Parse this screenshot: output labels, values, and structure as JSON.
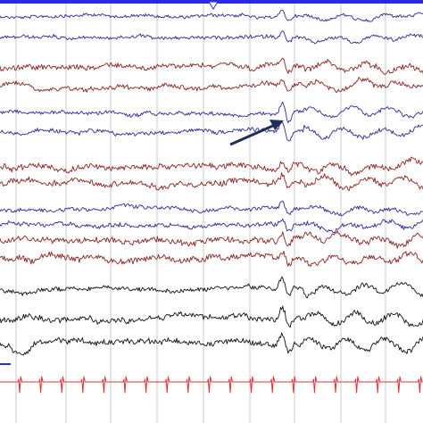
{
  "viewer": {
    "background": "#ffffff",
    "top_bar_color": "#2a2ae6",
    "gridline_color": "#c8c8c8"
  },
  "colors": {
    "blue": "#2b2b9c",
    "red": "#8b2323",
    "black": "#111111",
    "ecg": "#e0303a",
    "arrow": "#1f2f5a"
  },
  "channels": [
    {
      "id": "ch1",
      "color": "blue",
      "amp": 2.0,
      "event": 0.9
    },
    {
      "id": "ch2",
      "color": "blue",
      "amp": 2.2,
      "event": 0.9
    },
    {
      "id": "ch3",
      "color": "red",
      "amp": 3.2,
      "event": 1.0
    },
    {
      "id": "ch4",
      "color": "red",
      "amp": 3.0,
      "event": 1.0
    },
    {
      "id": "ch5",
      "color": "blue",
      "amp": 2.2,
      "event": 1.6
    },
    {
      "id": "ch6",
      "color": "blue",
      "amp": 2.6,
      "event": 1.6
    },
    {
      "id": "ch7",
      "color": "red",
      "amp": 3.5,
      "event": 1.2
    },
    {
      "id": "ch8",
      "color": "red",
      "amp": 3.5,
      "event": 1.2
    },
    {
      "id": "ch9",
      "color": "blue",
      "amp": 2.5,
      "event": 1.0
    },
    {
      "id": "ch10",
      "color": "blue",
      "amp": 2.8,
      "event": 1.0
    },
    {
      "id": "ch11",
      "color": "red",
      "amp": 3.6,
      "event": 1.1
    },
    {
      "id": "ch12",
      "color": "red",
      "amp": 3.6,
      "event": 1.1
    },
    {
      "id": "ch13",
      "color": "black",
      "amp": 3.0,
      "event": 1.5
    },
    {
      "id": "ch14",
      "color": "black",
      "amp": 3.5,
      "event": 1.6
    },
    {
      "id": "ch15",
      "color": "black",
      "amp": 3.5,
      "event": 1.6
    },
    {
      "id": "ecg",
      "color": "ecg",
      "amp": 0.0,
      "event": 0.0
    }
  ]
}
